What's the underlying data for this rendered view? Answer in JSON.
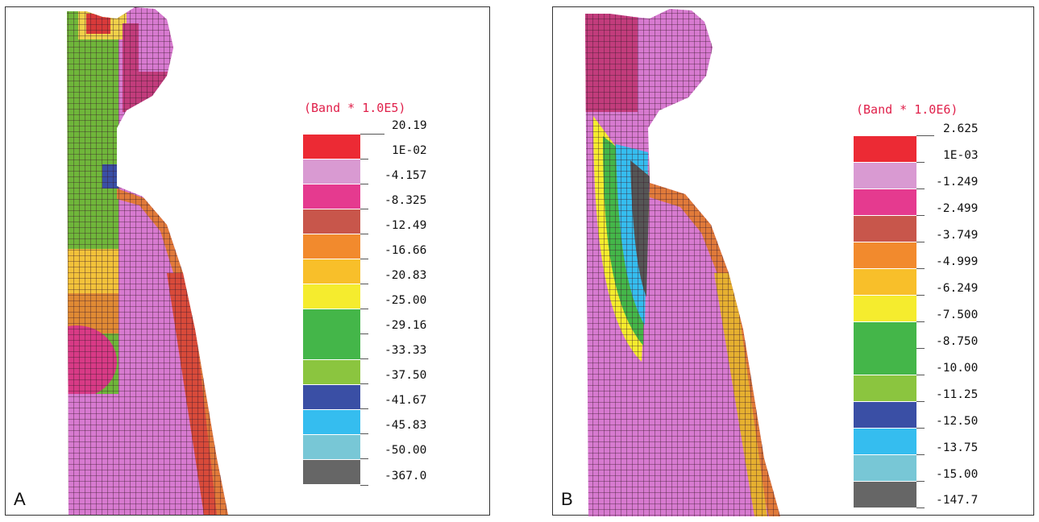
{
  "panels": [
    {
      "letter": "A",
      "legend_title": "(Band * 1.0E5)",
      "legend_values": [
        "20.19",
        "1E-02",
        "-4.157",
        "-8.325",
        "-12.49",
        "-16.66",
        "-20.83",
        "-25.00",
        "-29.16",
        "-33.33",
        "-37.50",
        "-41.67",
        "-45.83",
        "-50.00",
        "-367.0"
      ],
      "legend_colors": [
        "#ec2a34",
        "#d99ad2",
        "#e53a8f",
        "#c8564b",
        "#f28a2d",
        "#f8bf2a",
        "#f5ec2e",
        "#44b649",
        "#44b649",
        "#8bc53f",
        "#3a4fa5",
        "#35bdef",
        "#78c7d6",
        "#666666"
      ]
    },
    {
      "letter": "B",
      "legend_title": "(Band * 1.0E6)",
      "legend_values": [
        "2.625",
        "1E-03",
        "-1.249",
        "-2.499",
        "-3.749",
        "-4.999",
        "-6.249",
        "-7.500",
        "-8.750",
        "-10.00",
        "-11.25",
        "-12.50",
        "-13.75",
        "-15.00",
        "-147.7"
      ],
      "legend_colors": [
        "#ec2a34",
        "#d99ad2",
        "#e53a8f",
        "#c8564b",
        "#f28a2d",
        "#f8bf2a",
        "#f5ec2e",
        "#44b649",
        "#44b649",
        "#8bc53f",
        "#3a4fa5",
        "#35bdef",
        "#78c7d6",
        "#666666"
      ]
    }
  ]
}
